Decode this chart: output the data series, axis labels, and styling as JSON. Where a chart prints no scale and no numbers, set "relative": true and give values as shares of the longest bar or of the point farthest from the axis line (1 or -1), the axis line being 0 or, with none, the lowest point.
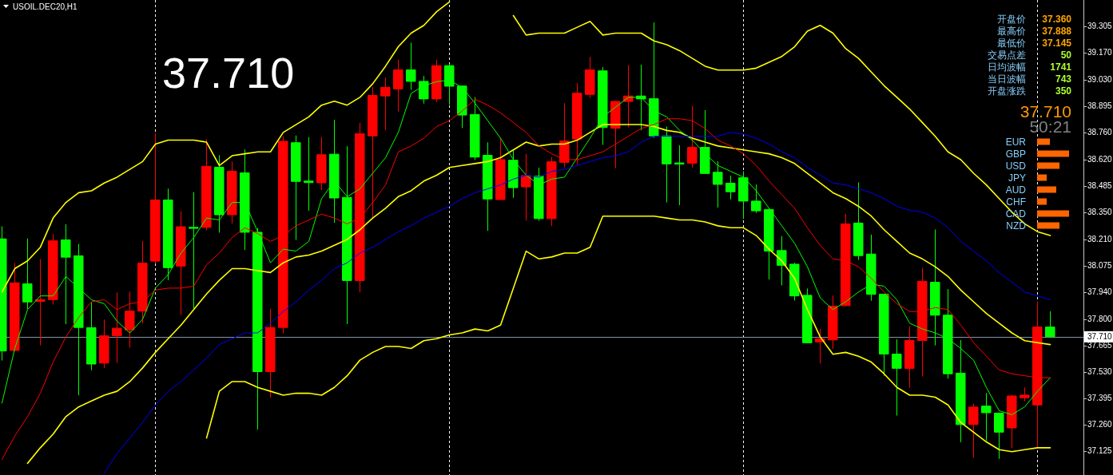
{
  "chart_data": [
    {
      "type": "candlestick",
      "title": "USOIL.DEC20,H1",
      "grid": "x",
      "categories": [
        null,
        null,
        null,
        null,
        null,
        null,
        null,
        null,
        null,
        null,
        null,
        null,
        null,
        null,
        null,
        null,
        null,
        null,
        null,
        null,
        null,
        null,
        null,
        null,
        null,
        null,
        null,
        null,
        null,
        null,
        null,
        null,
        null,
        null,
        null,
        null,
        null,
        null,
        null,
        null,
        null,
        null,
        null,
        null,
        null,
        null,
        null,
        null,
        null,
        null,
        null,
        null,
        null,
        null,
        null,
        null,
        null,
        null,
        null,
        null,
        null,
        null,
        null,
        null,
        null,
        null,
        null,
        null,
        null,
        null,
        null,
        null,
        null,
        null,
        null,
        null,
        null,
        null,
        null,
        null,
        null,
        null,
        null
      ],
      "ohlc": [
        [
          38.213,
          38.275,
          37.59,
          37.637
        ],
        [
          37.64,
          38.088,
          37.637,
          37.987
        ],
        [
          37.982,
          38.213,
          37.855,
          37.889
        ],
        [
          37.892,
          38.107,
          37.668,
          37.901
        ],
        [
          37.901,
          38.236,
          37.878,
          38.203
        ],
        [
          38.208,
          38.286,
          37.777,
          38.119
        ],
        [
          38.126,
          38.185,
          37.411,
          37.758
        ],
        [
          37.757,
          37.886,
          37.54,
          37.57
        ],
        [
          37.575,
          37.796,
          37.551,
          37.715
        ],
        [
          37.715,
          37.936,
          37.578,
          37.754
        ],
        [
          37.746,
          37.94,
          37.656,
          37.842
        ],
        [
          37.842,
          38.2,
          37.78,
          38.088
        ],
        [
          38.099,
          38.753,
          38.088,
          38.413
        ],
        [
          38.413,
          38.469,
          38.003,
          38.065
        ],
        [
          38.073,
          38.353,
          37.824,
          38.275
        ],
        [
          38.272,
          38.451,
          37.858,
          38.267
        ],
        [
          38.272,
          38.723,
          38.259,
          38.586
        ],
        [
          38.581,
          38.641,
          38.247,
          38.337
        ],
        [
          38.337,
          38.608,
          38.294,
          38.56
        ],
        [
          38.552,
          38.67,
          38.158,
          38.247
        ],
        [
          38.247,
          38.267,
          37.235,
          37.531
        ],
        [
          37.531,
          37.852,
          37.4,
          37.758
        ],
        [
          37.758,
          38.739,
          37.73,
          38.714
        ],
        [
          38.707,
          38.742,
          38.21,
          38.508
        ],
        [
          38.51,
          38.734,
          38.36,
          38.502
        ],
        [
          38.501,
          38.734,
          38.465,
          38.645
        ],
        [
          38.648,
          38.823,
          38.298,
          38.423
        ],
        [
          38.426,
          38.687,
          37.777,
          37.999
        ],
        [
          37.999,
          38.807,
          37.94,
          38.753
        ],
        [
          38.742,
          38.991,
          38.325,
          38.95
        ],
        [
          38.947,
          39.04,
          38.773,
          38.991
        ],
        [
          38.983,
          39.131,
          38.869,
          39.081
        ],
        [
          39.081,
          39.219,
          38.98,
          39.022
        ],
        [
          39.022,
          39.048,
          38.91,
          38.932
        ],
        [
          38.932,
          39.131,
          38.918,
          39.103
        ],
        [
          39.103,
          39.11,
          38.905,
          38.997
        ],
        [
          38.998,
          38.998,
          38.784,
          38.849
        ],
        [
          38.852,
          38.939,
          38.62,
          38.633
        ],
        [
          38.642,
          38.707,
          38.256,
          38.418
        ],
        [
          38.415,
          38.731,
          38.415,
          38.62
        ],
        [
          38.617,
          38.664,
          38.426,
          38.476
        ],
        [
          38.48,
          38.648,
          38.309,
          38.538
        ],
        [
          38.535,
          38.577,
          38.308,
          38.317
        ],
        [
          38.317,
          38.63,
          38.281,
          38.609
        ],
        [
          38.606,
          38.908,
          38.583,
          38.715
        ],
        [
          38.726,
          39.011,
          38.597,
          38.961
        ],
        [
          38.955,
          39.146,
          38.939,
          39.081
        ],
        [
          39.076,
          39.093,
          38.698,
          38.785
        ],
        [
          38.781,
          38.919,
          38.578,
          38.919
        ],
        [
          38.919,
          39.103,
          38.788,
          38.947
        ],
        [
          38.947,
          39.106,
          38.773,
          38.932
        ],
        [
          38.933,
          39.322,
          38.734,
          38.742
        ],
        [
          38.742,
          38.788,
          38.402,
          38.598
        ],
        [
          38.603,
          38.692,
          38.388,
          38.597
        ],
        [
          38.602,
          38.894,
          38.581,
          38.683
        ],
        [
          38.683,
          38.872,
          38.549,
          38.549
        ],
        [
          38.555,
          38.609,
          38.376,
          38.493
        ],
        [
          38.499,
          38.536,
          38.418,
          38.455
        ],
        [
          38.527,
          38.558,
          38.318,
          38.407
        ],
        [
          38.407,
          38.49,
          38.348,
          38.357
        ],
        [
          38.364,
          38.368,
          38.006,
          38.15
        ],
        [
          38.153,
          38.225,
          37.976,
          38.077
        ],
        [
          38.083,
          38.088,
          37.898,
          37.92
        ],
        [
          37.923,
          37.956,
          37.679,
          37.679
        ],
        [
          37.684,
          37.749,
          37.575,
          37.699
        ],
        [
          37.694,
          37.92,
          37.649,
          37.867
        ],
        [
          37.87,
          38.34,
          37.87,
          38.29
        ],
        [
          38.294,
          38.501,
          38.107,
          38.127
        ],
        [
          38.135,
          38.233,
          37.897,
          37.928
        ],
        [
          37.929,
          37.929,
          37.512,
          37.621
        ],
        [
          37.621,
          37.695,
          37.307,
          37.548
        ],
        [
          37.547,
          37.761,
          37.45,
          37.691
        ],
        [
          37.691,
          38.062,
          37.508,
          37.995
        ],
        [
          37.99,
          38.259,
          37.668,
          37.821
        ],
        [
          37.821,
          37.953,
          37.497,
          37.52
        ],
        [
          37.523,
          37.691,
          37.17,
          37.259
        ],
        [
          37.259,
          37.365,
          37.092,
          37.349
        ],
        [
          37.354,
          37.419,
          37.178,
          37.32
        ],
        [
          37.318,
          37.318,
          37.085,
          37.22
        ],
        [
          37.242,
          37.41,
          37.141,
          37.406
        ],
        [
          37.397,
          37.448,
          37.38,
          37.41
        ],
        [
          37.36,
          37.888,
          37.145,
          37.76
        ],
        [
          37.76,
          37.839,
          37.71,
          37.71
        ]
      ],
      "colors": [
        "#00ff00",
        "#ff0000",
        "#00ff00",
        "#ff0000",
        "#ff0000",
        "#00ff00",
        "#00ff00",
        "#00ff00",
        "#ff0000",
        "#ff0000",
        "#ff0000",
        "#ff0000",
        "#ff0000",
        "#00ff00",
        "#ff0000",
        "#00ff00",
        "#ff0000",
        "#00ff00",
        "#ff0000",
        "#00ff00",
        "#00ff00",
        "#ff0000",
        "#ff0000",
        "#00ff00",
        "#00ff00",
        "#ff0000",
        "#00ff00",
        "#00ff00",
        "#ff0000",
        "#ff0000",
        "#ff0000",
        "#ff0000",
        "#00ff00",
        "#00ff00",
        "#ff0000",
        "#00ff00",
        "#00ff00",
        "#00ff00",
        "#00ff00",
        "#ff0000",
        "#00ff00",
        "#ff0000",
        "#00ff00",
        "#ff0000",
        "#ff0000",
        "#ff0000",
        "#ff0000",
        "#00ff00",
        "#ff0000",
        "#ff0000",
        "#00ff00",
        "#00ff00",
        "#00ff00",
        "#00ff00",
        "#ff0000",
        "#00ff00",
        "#00ff00",
        "#00ff00",
        "#00ff00",
        "#00ff00",
        "#00ff00",
        "#00ff00",
        "#00ff00",
        "#00ff00",
        "#ff0000",
        "#ff0000",
        "#ff0000",
        "#00ff00",
        "#00ff00",
        "#00ff00",
        "#00ff00",
        "#ff0000",
        "#ff0000",
        "#00ff00",
        "#00ff00",
        "#00ff00",
        "#ff0000",
        "#00ff00",
        "#00ff00",
        "#ff0000",
        "#ff0000",
        "#ff0000",
        "#00ff00"
      ],
      "series": [
        {
          "type": "line",
          "color": "#ffff00",
          "values": [
            37.94,
            38.06,
            38.1,
            38.17,
            38.32,
            38.4,
            38.45,
            38.46,
            38.5,
            38.53,
            38.57,
            38.61,
            38.7,
            38.72,
            38.72,
            38.72,
            38.71,
            38.59,
            38.64,
            38.65,
            38.66,
            38.66,
            38.76,
            38.8,
            38.84,
            38.9,
            38.92,
            38.9,
            38.94,
            39.01,
            39.1,
            39.2,
            39.27,
            39.31,
            39.38,
            39.43,
            null,
            null,
            null,
            null,
            39.36,
            39.26,
            39.27,
            39.27,
            39.27,
            39.3,
            39.33,
            39.26,
            39.27,
            39.27,
            39.27,
            39.23,
            39.21,
            39.18,
            39.14,
            39.1,
            39.08,
            39.08,
            39.08,
            39.09,
            39.12,
            39.15,
            39.2,
            39.28,
            39.31,
            39.27,
            39.19,
            39.14,
            39.07,
            39.0,
            38.94,
            38.88,
            38.81,
            38.74,
            38.66,
            38.62,
            38.55,
            38.49,
            38.42,
            38.35,
            38.29,
            38.25,
            38.23
          ]
        },
        {
          "type": "line",
          "color": "#ffff00",
          "values": [
            null,
            null,
            37.06,
            37.14,
            37.21,
            37.3,
            37.35,
            37.38,
            37.41,
            37.43,
            37.48,
            37.55,
            37.63,
            37.7,
            37.77,
            37.85,
            37.93,
            38.0,
            38.06,
            38.06,
            38.05,
            38.04,
            38.09,
            38.12,
            38.13,
            38.15,
            38.18,
            38.21,
            38.26,
            38.32,
            38.37,
            38.43,
            38.46,
            38.51,
            38.54,
            38.58,
            38.59,
            38.6,
            38.61,
            38.63,
            38.67,
            38.71,
            38.69,
            38.7,
            38.7,
            38.72,
            38.76,
            38.8,
            38.8,
            38.8,
            38.8,
            38.79,
            38.77,
            38.76,
            38.73,
            38.71,
            38.69,
            38.68,
            38.67,
            38.66,
            38.65,
            38.63,
            38.6,
            38.55,
            38.5,
            38.45,
            38.42,
            38.38,
            38.33,
            38.26,
            38.2,
            38.14,
            38.11,
            38.07,
            38.02,
            37.95,
            37.89,
            37.83,
            37.78,
            37.73,
            37.69,
            37.68,
            37.67
          ]
        },
        {
          "type": "line",
          "color": "#ffff00",
          "values": [
            null,
            null,
            null,
            null,
            null,
            null,
            null,
            null,
            null,
            null,
            null,
            null,
            null,
            null,
            null,
            null,
            37.19,
            37.43,
            37.48,
            37.48,
            37.45,
            37.43,
            37.41,
            37.42,
            37.42,
            37.41,
            37.45,
            37.51,
            37.59,
            37.63,
            37.66,
            37.66,
            37.65,
            37.69,
            37.7,
            37.72,
            37.73,
            37.75,
            37.74,
            37.77,
            37.96,
            38.15,
            38.11,
            38.12,
            38.14,
            38.14,
            38.17,
            38.33,
            38.33,
            38.33,
            38.33,
            38.33,
            38.32,
            38.31,
            38.31,
            38.3,
            38.28,
            38.27,
            38.27,
            38.23,
            38.16,
            38.1,
            38.01,
            37.85,
            37.71,
            37.62,
            37.63,
            37.61,
            37.58,
            37.52,
            37.45,
            37.41,
            37.41,
            37.4,
            37.36,
            37.27,
            37.22,
            37.17,
            37.13,
            37.12,
            37.13,
            37.14,
            37.14
          ]
        },
        {
          "type": "line",
          "color": "#00ff00",
          "values": [
            37.37,
            37.65,
            37.85,
            37.92,
            37.92,
            38.02,
            37.96,
            37.9,
            37.88,
            37.79,
            37.73,
            37.8,
            37.96,
            38.03,
            38.14,
            38.22,
            38.32,
            38.31,
            38.4,
            38.4,
            38.25,
            38.09,
            38.16,
            38.15,
            38.2,
            38.42,
            38.51,
            38.43,
            38.47,
            38.55,
            38.63,
            38.76,
            38.96,
            39.0,
            39.02,
            39.03,
            38.99,
            38.91,
            38.82,
            38.73,
            38.62,
            38.54,
            38.49,
            38.52,
            38.53,
            38.63,
            38.73,
            38.84,
            38.89,
            38.94,
            38.94,
            38.87,
            38.84,
            38.77,
            38.72,
            38.65,
            38.59,
            38.56,
            38.53,
            38.46,
            38.37,
            38.28,
            38.19,
            38.07,
            37.91,
            37.85,
            37.89,
            37.94,
            37.98,
            37.97,
            37.9,
            37.78,
            37.75,
            37.73,
            37.7,
            37.65,
            37.59,
            37.45,
            37.33,
            37.31,
            37.35,
            37.43,
            37.5
          ]
        },
        {
          "type": "line",
          "color": "#ff0000",
          "values": [
            37.08,
            37.2,
            37.3,
            37.42,
            37.58,
            37.71,
            37.81,
            37.89,
            37.9,
            37.85,
            37.88,
            37.89,
            37.95,
            37.96,
            37.96,
            37.97,
            38.08,
            38.14,
            38.22,
            38.27,
            38.24,
            38.2,
            38.23,
            38.28,
            38.31,
            38.34,
            38.32,
            38.29,
            38.32,
            38.4,
            38.49,
            38.66,
            38.69,
            38.73,
            38.79,
            38.82,
            38.87,
            38.93,
            38.9,
            38.86,
            38.81,
            38.76,
            38.69,
            38.65,
            38.62,
            38.62,
            38.64,
            38.66,
            38.7,
            38.74,
            38.78,
            38.8,
            38.83,
            38.83,
            38.82,
            38.78,
            38.72,
            38.69,
            38.65,
            38.59,
            38.51,
            38.44,
            38.37,
            38.27,
            38.18,
            38.11,
            38.1,
            38.07,
            38.01,
            37.94,
            37.88,
            37.84,
            37.84,
            37.86,
            37.85,
            37.77,
            37.68,
            37.61,
            37.54,
            37.52,
            37.51,
            37.5,
            37.5
          ]
        },
        {
          "type": "line",
          "color": "#0000ff",
          "values": [
            null,
            null,
            null,
            null,
            null,
            null,
            null,
            null,
            37.01,
            37.11,
            37.19,
            37.27,
            37.36,
            37.43,
            37.48,
            37.54,
            37.6,
            37.67,
            37.7,
            37.73,
            37.73,
            37.78,
            37.84,
            37.89,
            37.95,
            38.0,
            38.06,
            38.09,
            38.14,
            38.17,
            38.21,
            38.25,
            38.28,
            38.32,
            38.35,
            38.38,
            38.42,
            38.45,
            38.47,
            38.49,
            38.52,
            38.54,
            38.53,
            38.56,
            38.57,
            38.59,
            38.61,
            38.63,
            38.64,
            38.66,
            38.71,
            38.74,
            38.74,
            38.74,
            38.74,
            38.74,
            38.74,
            38.76,
            38.75,
            38.73,
            38.7,
            38.66,
            38.63,
            38.58,
            38.54,
            38.5,
            38.49,
            38.47,
            38.45,
            38.42,
            38.38,
            38.36,
            38.35,
            38.32,
            38.27,
            38.2,
            38.15,
            38.1,
            38.04,
            37.99,
            37.94,
            37.92,
            37.9
          ]
        }
      ],
      "ylim": [
        37.0,
        39.44
      ],
      "yticks": [
        37.125,
        {
          "value": 37.26,
          "label": "37.260"
        },
        37.395,
        {
          "value": 37.53,
          "label": "37.530"
        },
        37.665,
        {
          "value": 37.8,
          "label": "37.800"
        },
        {
          "value": 37.94,
          "label": "37.940"
        },
        38.075,
        {
          "value": 38.21,
          "label": "38.210"
        },
        {
          "value": 38.35,
          "label": "38.350"
        },
        38.485,
        {
          "value": 38.62,
          "label": "38.620"
        },
        {
          "value": 38.76,
          "label": "38.760"
        },
        38.895,
        {
          "value": 39.03,
          "label": "39.030"
        },
        {
          "value": 39.17,
          "label": "39.170"
        },
        39.305
      ],
      "ref_lines": [
        {
          "axis": "y",
          "value": 37.71,
          "label": "37.710",
          "color": "#8494a8"
        }
      ],
      "annotations": [
        "37.710",
        "开盘价",
        "37.360",
        "最高价",
        "37.888",
        "最低价",
        "37.145",
        "交易点差",
        "50",
        "日均波幅",
        "1741",
        "当日波幅",
        "743",
        "开盘涨跌",
        "350",
        "37.710",
        "50:21"
      ]
    },
    {
      "type": "bar",
      "orientation": "horizontal",
      "relative": true,
      "categories": [
        "EUR",
        "GBP",
        "USD",
        "JPY",
        "AUD",
        "CHF",
        "CAD",
        "NZD"
      ],
      "values": [
        0.4,
        1,
        0.7,
        0.3,
        0.6,
        0.3,
        1,
        0.7
      ],
      "color": "#ff6600"
    }
  ]
}
